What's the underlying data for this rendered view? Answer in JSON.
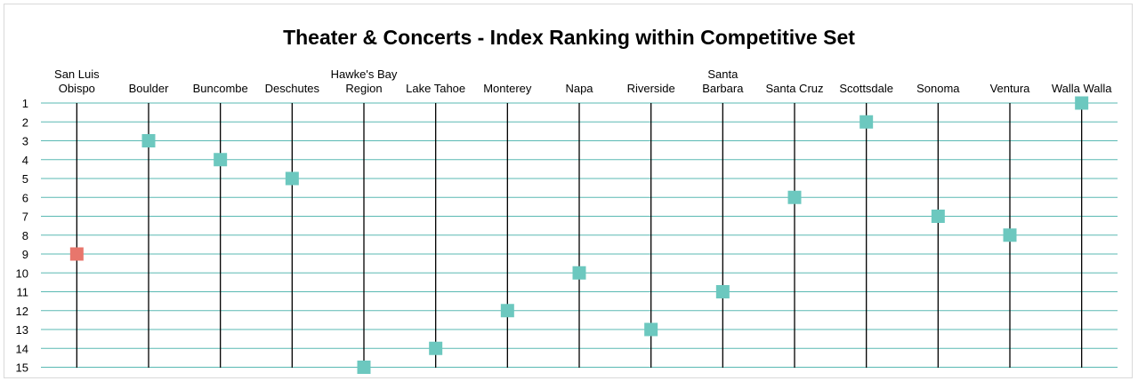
{
  "chart_data": {
    "type": "scatter",
    "title": "Theater & Concerts - Index Ranking within Competitive Set",
    "categories": [
      "San Luis Obispo",
      "Boulder",
      "Buncombe",
      "Deschutes",
      "Hawke's Bay Region",
      "Lake Tahoe",
      "Monterey",
      "Napa",
      "Riverside",
      "Santa Barbara",
      "Santa Cruz",
      "Scottsdale",
      "Sonoma",
      "Ventura",
      "Walla Walla"
    ],
    "category_label_lines": [
      [
        "San Luis",
        "Obispo"
      ],
      [
        "Boulder"
      ],
      [
        "Buncombe"
      ],
      [
        "Deschutes"
      ],
      [
        "Hawke's Bay",
        "Region"
      ],
      [
        "Lake Tahoe"
      ],
      [
        "Monterey"
      ],
      [
        "Napa"
      ],
      [
        "Riverside"
      ],
      [
        "Santa",
        "Barbara"
      ],
      [
        "Santa Cruz"
      ],
      [
        "Scottsdale"
      ],
      [
        "Sonoma"
      ],
      [
        "Ventura"
      ],
      [
        "Walla Walla"
      ]
    ],
    "values": [
      9,
      3,
      4,
      5,
      15,
      14,
      12,
      10,
      13,
      11,
      6,
      2,
      7,
      8,
      1
    ],
    "highlight_index": 0,
    "y_axis": {
      "ticks": [
        1,
        2,
        3,
        4,
        5,
        6,
        7,
        8,
        9,
        10,
        11,
        12,
        13,
        14,
        15
      ],
      "inverted": true,
      "range": [
        1,
        15
      ]
    },
    "grid": true,
    "xlabel": "",
    "ylabel": "",
    "colors": {
      "marker": "#6cc8bf",
      "highlight_marker": "#e8766c",
      "gridline": "#5ab9b3",
      "category_line": "#000000"
    }
  }
}
